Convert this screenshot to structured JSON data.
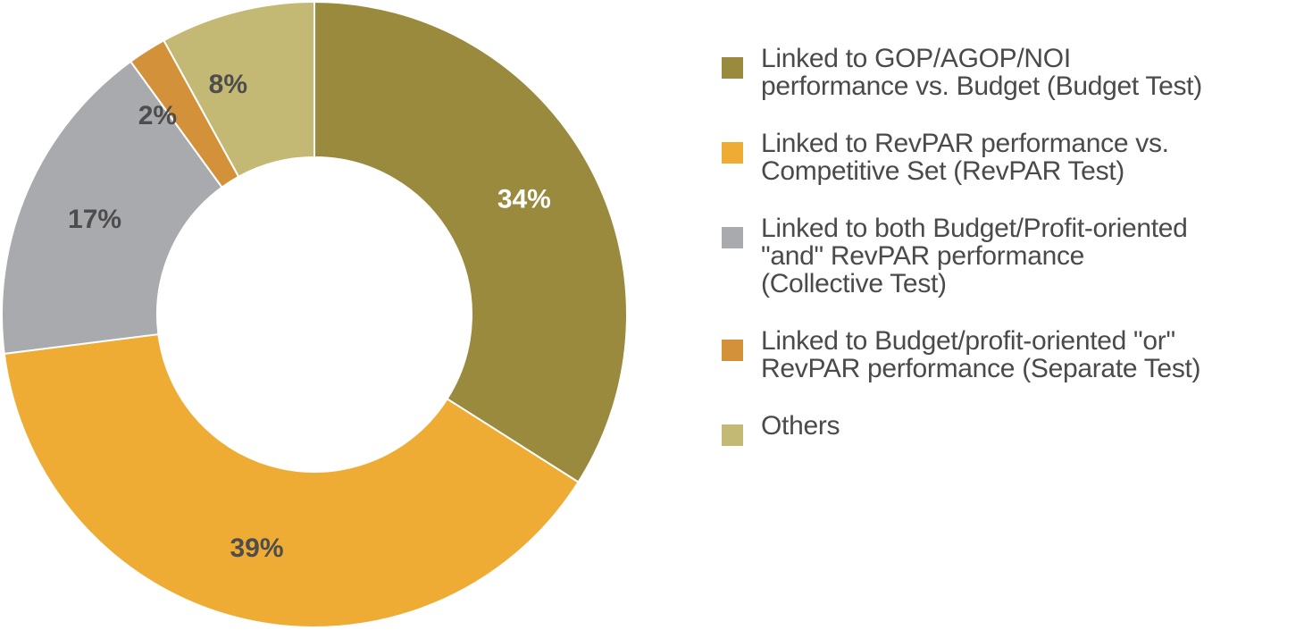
{
  "chart_data": {
    "type": "pie",
    "variant": "donut",
    "values": [
      34,
      39,
      17,
      2,
      8
    ],
    "labels": [
      "34%",
      "39%",
      "17%",
      "2%",
      "8%"
    ],
    "categories": [
      "Linked to GOP/AGOP/NOI performance vs. Budget (Budget Test)",
      "Linked to RevPAR performance vs. Competitive Set (RevPAR Test)",
      "Linked to both Budget/Profit-oriented \"and\" RevPAR performance (Collective Test)",
      "Linked to Budget/profit-oriented \"or\" RevPAR performance (Separate Test)",
      "Others"
    ],
    "colors": [
      "#9a8a3e",
      "#efac35",
      "#a9aaae",
      "#d3913a",
      "#c3b874"
    ],
    "label_colors": [
      "#ffffff",
      "#4d4d4d",
      "#4d4d4d",
      "#4d4d4d",
      "#4d4d4d"
    ],
    "start": "12 o'clock",
    "direction": "clockwise",
    "legend_position": "right"
  },
  "legend": {
    "items": [
      [
        "Linked to GOP/AGOP/NOI",
        "performance vs. Budget (Budget Test)"
      ],
      [
        "Linked to RevPAR performance vs.",
        "Competitive Set (RevPAR Test)"
      ],
      [
        "Linked to both Budget/Profit-oriented",
        "\"and\" RevPAR performance",
        "(Collective Test)"
      ],
      [
        "Linked to Budget/profit-oriented \"or\"",
        "RevPAR performance (Separate Test)"
      ],
      [
        "Others"
      ]
    ]
  }
}
